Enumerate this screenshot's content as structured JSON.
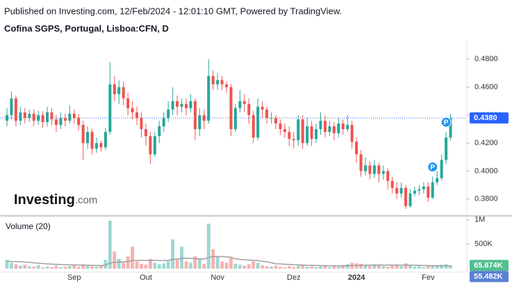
{
  "chart_data": {
    "type": "candlestick",
    "subtitle": "Published on Investing.com, 12/Feb/2024 - 12:01:10 GMT, Powered by TradingView.",
    "title": "Cofina SGPS, Portugal, Lisboa:CFN, D",
    "watermark": {
      "name": "Investing",
      "suffix": ".com"
    },
    "categories": [
      null,
      null,
      null,
      null,
      null,
      null,
      null,
      null,
      null,
      null,
      null,
      null,
      null,
      null,
      null,
      "Sep",
      null,
      null,
      null,
      null,
      null,
      null,
      null,
      null,
      null,
      null,
      null,
      null,
      null,
      null,
      null,
      "Out",
      null,
      null,
      null,
      null,
      null,
      null,
      null,
      null,
      null,
      null,
      null,
      null,
      null,
      null,
      null,
      "Nov",
      null,
      null,
      null,
      null,
      null,
      null,
      null,
      null,
      null,
      null,
      null,
      null,
      null,
      null,
      null,
      null,
      "Dez",
      null,
      null,
      null,
      null,
      null,
      null,
      null,
      null,
      null,
      null,
      null,
      null,
      null,
      "2024",
      null,
      null,
      null,
      null,
      null,
      null,
      null,
      null,
      null,
      null,
      null,
      null,
      null,
      null,
      null,
      "Fev",
      null,
      null,
      null,
      null,
      null
    ],
    "open": [
      0.436,
      0.44,
      0.452,
      0.436,
      0.442,
      0.438,
      0.441,
      0.436,
      0.44,
      0.435,
      0.442,
      0.437,
      0.433,
      0.438,
      0.436,
      0.441,
      0.438,
      0.433,
      0.42,
      0.428,
      0.416,
      0.42,
      0.417,
      0.428,
      0.462,
      0.455,
      0.46,
      0.452,
      0.445,
      0.442,
      0.438,
      0.43,
      0.425,
      0.412,
      0.425,
      0.432,
      0.438,
      0.444,
      0.45,
      0.446,
      0.448,
      0.445,
      0.45,
      0.43,
      0.44,
      0.436,
      0.468,
      0.462,
      0.465,
      0.462,
      0.46,
      0.43,
      0.445,
      0.45,
      0.448,
      0.44,
      0.424,
      0.446,
      0.444,
      0.438,
      0.438,
      0.434,
      0.43,
      0.428,
      0.423,
      0.422,
      0.437,
      0.42,
      0.432,
      0.423,
      0.43,
      0.436,
      0.428,
      0.432,
      0.427,
      0.434,
      0.43,
      0.433,
      0.421,
      0.412,
      0.4,
      0.404,
      0.398,
      0.404,
      0.398,
      0.4,
      0.393,
      0.388,
      0.384,
      0.388,
      0.375,
      0.384,
      0.386,
      0.387,
      0.389,
      0.381,
      0.392,
      0.395,
      0.408,
      0.424
    ],
    "high": [
      0.445,
      0.457,
      0.454,
      0.446,
      0.445,
      0.444,
      0.444,
      0.443,
      0.443,
      0.446,
      0.445,
      0.44,
      0.442,
      0.441,
      0.447,
      0.444,
      0.441,
      0.436,
      0.432,
      0.43,
      0.424,
      0.422,
      0.431,
      0.478,
      0.468,
      0.465,
      0.464,
      0.456,
      0.45,
      0.446,
      0.442,
      0.434,
      0.428,
      0.428,
      0.436,
      0.442,
      0.45,
      0.46,
      0.454,
      0.452,
      0.452,
      0.455,
      0.452,
      0.445,
      0.444,
      0.48,
      0.472,
      0.47,
      0.468,
      0.464,
      0.462,
      0.448,
      0.458,
      0.455,
      0.452,
      0.443,
      0.452,
      0.45,
      0.446,
      0.442,
      0.44,
      0.437,
      0.434,
      0.432,
      0.428,
      0.44,
      0.44,
      0.438,
      0.436,
      0.434,
      0.442,
      0.44,
      0.436,
      0.435,
      0.438,
      0.437,
      0.44,
      0.436,
      0.424,
      0.415,
      0.41,
      0.407,
      0.408,
      0.406,
      0.404,
      0.402,
      0.396,
      0.392,
      0.392,
      0.39,
      0.387,
      0.389,
      0.39,
      0.392,
      0.392,
      0.396,
      0.4,
      0.412,
      0.428,
      0.441
    ],
    "low": [
      0.432,
      0.437,
      0.432,
      0.433,
      0.434,
      0.435,
      0.432,
      0.433,
      0.431,
      0.432,
      0.433,
      0.428,
      0.43,
      0.432,
      0.434,
      0.434,
      0.429,
      0.408,
      0.416,
      0.412,
      0.413,
      0.414,
      0.415,
      0.426,
      0.45,
      0.448,
      0.447,
      0.44,
      0.437,
      0.433,
      0.424,
      0.418,
      0.405,
      0.41,
      0.42,
      0.428,
      0.435,
      0.44,
      0.44,
      0.442,
      0.44,
      0.442,
      0.422,
      0.425,
      0.43,
      0.434,
      0.458,
      0.458,
      0.458,
      0.456,
      0.425,
      0.428,
      0.442,
      0.442,
      0.434,
      0.42,
      0.422,
      0.438,
      0.434,
      0.434,
      0.43,
      0.426,
      0.424,
      0.418,
      0.416,
      0.418,
      0.416,
      0.418,
      0.418,
      0.42,
      0.426,
      0.424,
      0.425,
      0.422,
      0.424,
      0.426,
      0.428,
      0.416,
      0.406,
      0.396,
      0.397,
      0.394,
      0.395,
      0.392,
      0.394,
      0.387,
      0.384,
      0.38,
      0.381,
      0.373,
      0.374,
      0.382,
      0.383,
      0.384,
      0.378,
      0.38,
      0.39,
      0.393,
      0.405,
      0.422
    ],
    "close": [
      0.44,
      0.452,
      0.436,
      0.442,
      0.438,
      0.441,
      0.436,
      0.44,
      0.435,
      0.442,
      0.437,
      0.433,
      0.438,
      0.436,
      0.441,
      0.438,
      0.433,
      0.42,
      0.428,
      0.416,
      0.42,
      0.417,
      0.428,
      0.462,
      0.455,
      0.46,
      0.452,
      0.445,
      0.442,
      0.438,
      0.43,
      0.425,
      0.412,
      0.425,
      0.432,
      0.438,
      0.444,
      0.45,
      0.446,
      0.448,
      0.445,
      0.45,
      0.43,
      0.44,
      0.436,
      0.468,
      0.462,
      0.465,
      0.462,
      0.46,
      0.43,
      0.445,
      0.45,
      0.448,
      0.44,
      0.424,
      0.446,
      0.444,
      0.438,
      0.438,
      0.434,
      0.43,
      0.428,
      0.423,
      0.422,
      0.437,
      0.42,
      0.432,
      0.423,
      0.43,
      0.436,
      0.428,
      0.432,
      0.427,
      0.434,
      0.43,
      0.433,
      0.421,
      0.412,
      0.4,
      0.404,
      0.398,
      0.404,
      0.398,
      0.4,
      0.393,
      0.388,
      0.384,
      0.388,
      0.375,
      0.384,
      0.386,
      0.387,
      0.389,
      0.381,
      0.392,
      0.395,
      0.408,
      0.424,
      0.438
    ],
    "up_color": "#26a69a",
    "down_color": "#ef5350",
    "ylim": [
      0.368,
      0.494
    ],
    "yticks": [
      {
        "value": 0.38,
        "label": "0.3800"
      },
      {
        "value": 0.4,
        "label": "0.4000"
      },
      {
        "value": 0.42,
        "label": "0.4200"
      },
      {
        "value": 0.44,
        "label": "0.4400"
      },
      {
        "value": 0.46,
        "label": "0.4600"
      },
      {
        "value": 0.48,
        "label": "0.4800"
      }
    ],
    "last_price": {
      "value": 0.438,
      "label": "0.4380",
      "color": "#2962ff"
    },
    "markers": [
      {
        "index": 95,
        "label": "P"
      },
      {
        "index": 98,
        "label": "P"
      }
    ],
    "marker_color": "#2196f3",
    "volume": {
      "label": "Volume (20)",
      "values": [
        180000,
        120000,
        90000,
        60000,
        80000,
        50000,
        40000,
        70000,
        30000,
        45000,
        35000,
        60000,
        30000,
        40000,
        50000,
        80000,
        40000,
        90000,
        60000,
        50000,
        40000,
        60000,
        180000,
        980000,
        350000,
        200000,
        120000,
        250000,
        450000,
        150000,
        100000,
        80000,
        200000,
        120000,
        90000,
        110000,
        150000,
        600000,
        200000,
        450000,
        150000,
        120000,
        250000,
        200000,
        100000,
        920000,
        400000,
        250000,
        150000,
        120000,
        220000,
        100000,
        80000,
        60000,
        90000,
        150000,
        120000,
        70000,
        50000,
        40000,
        60000,
        40000,
        30000,
        50000,
        35000,
        60000,
        80000,
        40000,
        50000,
        35000,
        45000,
        60000,
        30000,
        50000,
        40000,
        70000,
        90000,
        120000,
        110000,
        100000,
        80000,
        60000,
        90000,
        70000,
        50000,
        40000,
        60000,
        80000,
        50000,
        110000,
        60000,
        40000,
        50000,
        30000,
        60000,
        50000,
        70000,
        80000,
        90000,
        65674
      ],
      "ylim": [
        0,
        1050000
      ],
      "yticks": [
        {
          "value": 1000000,
          "label": "1M"
        },
        {
          "value": 500000,
          "label": "500K"
        }
      ],
      "last_label": {
        "value": 65674,
        "label": "65.674K",
        "color": "#4fbf8f"
      }
    },
    "volume_ma": {
      "color": "#9e9e9e",
      "values": [
        150000,
        148000,
        145000,
        140000,
        135000,
        128000,
        120000,
        112000,
        105000,
        98000,
        92000,
        88000,
        84000,
        80000,
        78000,
        76000,
        74000,
        72000,
        70000,
        68000,
        66000,
        64000,
        70000,
        115000,
        130000,
        135000,
        138000,
        145000,
        165000,
        168000,
        168000,
        166000,
        170000,
        168000,
        166000,
        165000,
        168000,
        190000,
        195000,
        210000,
        212000,
        210000,
        205000,
        200000,
        195000,
        230000,
        245000,
        250000,
        248000,
        240000,
        235000,
        200000,
        190000,
        180000,
        175000,
        170000,
        165000,
        150000,
        140000,
        120000,
        100000,
        95000,
        90000,
        85000,
        80000,
        78000,
        75000,
        70000,
        68000,
        65000,
        62000,
        60000,
        58000,
        57000,
        56000,
        58000,
        60000,
        63000,
        66000,
        68000,
        70000,
        72000,
        73000,
        74000,
        73000,
        72000,
        72000,
        73000,
        72000,
        73000,
        72000,
        70000,
        68000,
        66000,
        64000,
        62000,
        60000,
        58000,
        56000,
        55482
      ],
      "last_label": {
        "value": 55482,
        "label": "55.482K",
        "color": "#5a7fd6"
      }
    }
  }
}
